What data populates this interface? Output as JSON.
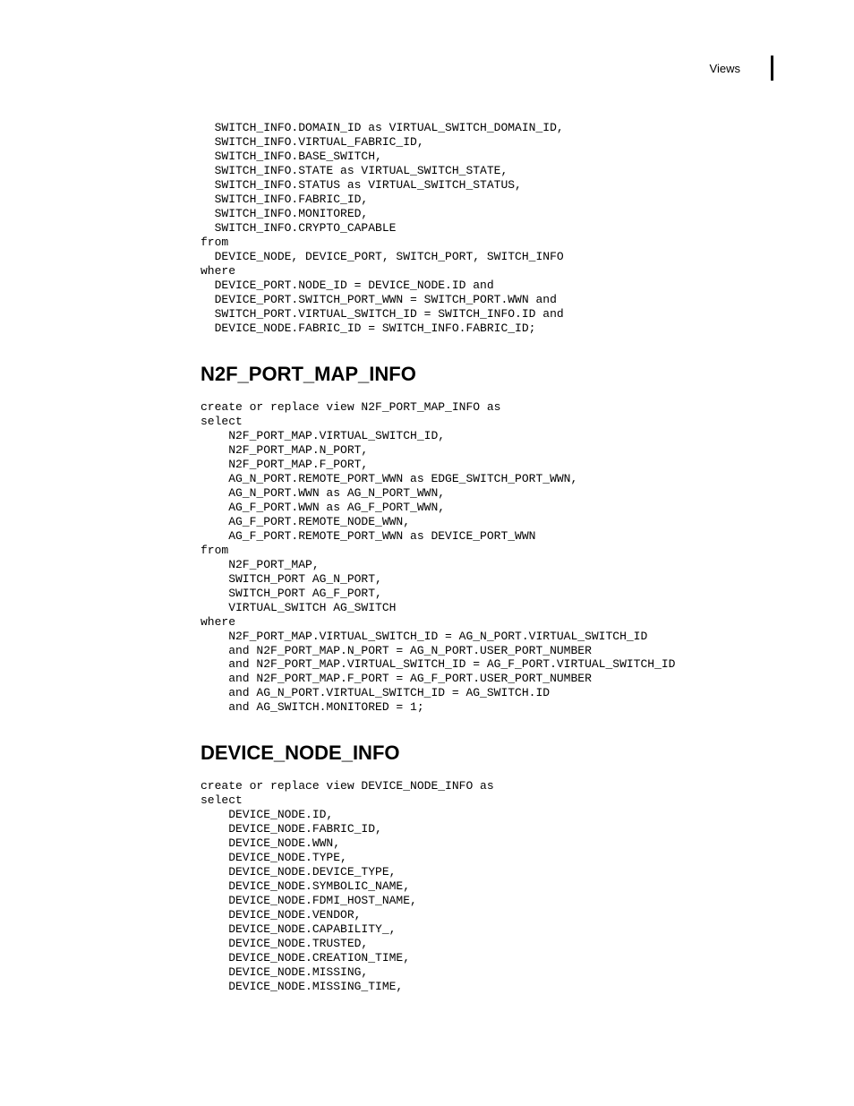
{
  "header": {
    "label": "Views"
  },
  "sections": {
    "s0": {
      "code": "  SWITCH_INFO.DOMAIN_ID as VIRTUAL_SWITCH_DOMAIN_ID,\n  SWITCH_INFO.VIRTUAL_FABRIC_ID,\n  SWITCH_INFO.BASE_SWITCH,\n  SWITCH_INFO.STATE as VIRTUAL_SWITCH_STATE,\n  SWITCH_INFO.STATUS as VIRTUAL_SWITCH_STATUS,\n  SWITCH_INFO.FABRIC_ID,\n  SWITCH_INFO.MONITORED,\n  SWITCH_INFO.CRYPTO_CAPABLE\nfrom\n  DEVICE_NODE, DEVICE_PORT, SWITCH_PORT, SWITCH_INFO\nwhere\n  DEVICE_PORT.NODE_ID = DEVICE_NODE.ID and\n  DEVICE_PORT.SWITCH_PORT_WWN = SWITCH_PORT.WWN and\n  SWITCH_PORT.VIRTUAL_SWITCH_ID = SWITCH_INFO.ID and\n  DEVICE_NODE.FABRIC_ID = SWITCH_INFO.FABRIC_ID;"
    },
    "s1": {
      "heading": "N2F_PORT_MAP_INFO",
      "code": "create or replace view N2F_PORT_MAP_INFO as\nselect\n    N2F_PORT_MAP.VIRTUAL_SWITCH_ID,\n    N2F_PORT_MAP.N_PORT,\n    N2F_PORT_MAP.F_PORT,\n    AG_N_PORT.REMOTE_PORT_WWN as EDGE_SWITCH_PORT_WWN,\n    AG_N_PORT.WWN as AG_N_PORT_WWN,\n    AG_F_PORT.WWN as AG_F_PORT_WWN,\n    AG_F_PORT.REMOTE_NODE_WWN,\n    AG_F_PORT.REMOTE_PORT_WWN as DEVICE_PORT_WWN\nfrom\n    N2F_PORT_MAP,\n    SWITCH_PORT AG_N_PORT,\n    SWITCH_PORT AG_F_PORT,\n    VIRTUAL_SWITCH AG_SWITCH\nwhere\n    N2F_PORT_MAP.VIRTUAL_SWITCH_ID = AG_N_PORT.VIRTUAL_SWITCH_ID\n    and N2F_PORT_MAP.N_PORT = AG_N_PORT.USER_PORT_NUMBER\n    and N2F_PORT_MAP.VIRTUAL_SWITCH_ID = AG_F_PORT.VIRTUAL_SWITCH_ID\n    and N2F_PORT_MAP.F_PORT = AG_F_PORT.USER_PORT_NUMBER\n    and AG_N_PORT.VIRTUAL_SWITCH_ID = AG_SWITCH.ID\n    and AG_SWITCH.MONITORED = 1;"
    },
    "s2": {
      "heading": "DEVICE_NODE_INFO",
      "code": "create or replace view DEVICE_NODE_INFO as\nselect\n    DEVICE_NODE.ID,\n    DEVICE_NODE.FABRIC_ID,\n    DEVICE_NODE.WWN,\n    DEVICE_NODE.TYPE,\n    DEVICE_NODE.DEVICE_TYPE,\n    DEVICE_NODE.SYMBOLIC_NAME,\n    DEVICE_NODE.FDMI_HOST_NAME,\n    DEVICE_NODE.VENDOR,\n    DEVICE_NODE.CAPABILITY_,\n    DEVICE_NODE.TRUSTED,\n    DEVICE_NODE.CREATION_TIME,\n    DEVICE_NODE.MISSING,\n    DEVICE_NODE.MISSING_TIME,"
    }
  }
}
